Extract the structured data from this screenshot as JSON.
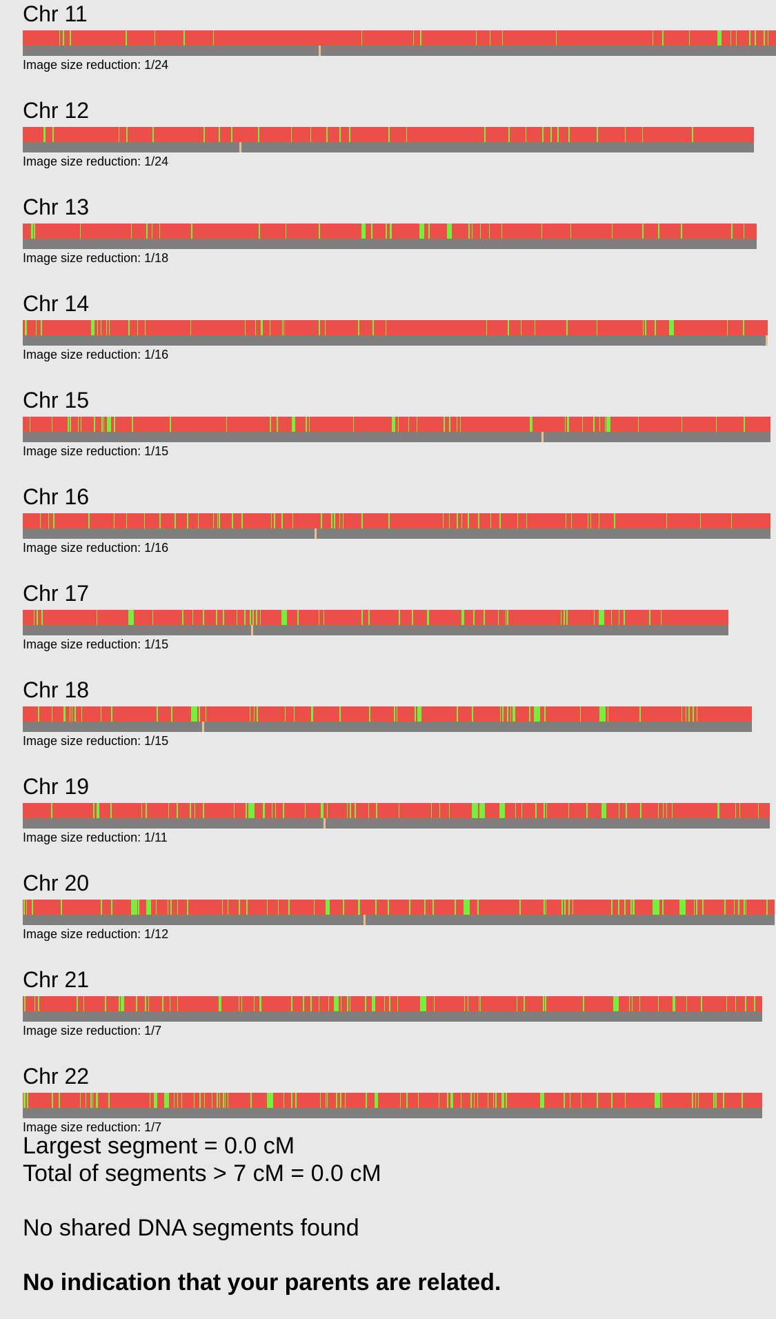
{
  "colors": {
    "background": "#e8e8e8",
    "mismatch_red": "#ea5049",
    "match_green": "#7aee3c",
    "track_gray": "#7f7f7f",
    "marker_tan": "#e8c28c"
  },
  "chromosomes": [
    {
      "label": "Chr 11",
      "caption": "Image size reduction: 1/24",
      "length_fraction": 1.0,
      "marker_fraction": 0.393,
      "green_seed": 11
    },
    {
      "label": "Chr 12",
      "caption": "Image size reduction: 1/24",
      "length_fraction": 0.971,
      "marker_fraction": 0.296,
      "green_seed": 12
    },
    {
      "label": "Chr 13",
      "caption": "Image size reduction: 1/18",
      "length_fraction": 0.974,
      "marker_fraction": null,
      "green_seed": 13
    },
    {
      "label": "Chr 14",
      "caption": "Image size reduction: 1/16",
      "length_fraction": 0.989,
      "marker_fraction": 0.998,
      "green_seed": 14
    },
    {
      "label": "Chr 15",
      "caption": "Image size reduction: 1/15",
      "length_fraction": 0.993,
      "marker_fraction": 0.694,
      "green_seed": 15
    },
    {
      "label": "Chr 16",
      "caption": "Image size reduction: 1/16",
      "length_fraction": 0.993,
      "marker_fraction": 0.39,
      "green_seed": 16
    },
    {
      "label": "Chr 17",
      "caption": "Image size reduction: 1/15",
      "length_fraction": 0.937,
      "marker_fraction": 0.324,
      "green_seed": 17
    },
    {
      "label": "Chr 18",
      "caption": "Image size reduction: 1/15",
      "length_fraction": 0.968,
      "marker_fraction": 0.246,
      "green_seed": 18
    },
    {
      "label": "Chr 19",
      "caption": "Image size reduction: 1/11",
      "length_fraction": 0.992,
      "marker_fraction": 0.403,
      "green_seed": 19
    },
    {
      "label": "Chr 20",
      "caption": "Image size reduction: 1/12",
      "length_fraction": 0.998,
      "marker_fraction": 0.453,
      "green_seed": 20
    },
    {
      "label": "Chr 21",
      "caption": "Image size reduction: 1/7",
      "length_fraction": 0.982,
      "marker_fraction": null,
      "green_seed": 21
    },
    {
      "label": "Chr 22",
      "caption": "Image size reduction: 1/7",
      "length_fraction": 0.982,
      "marker_fraction": null,
      "green_seed": 22
    }
  ],
  "summary": {
    "largest_segment": "Largest segment = 0.0 cM",
    "total_segments": "Total of segments > 7 cM = 0.0 cM",
    "no_shared": "No shared DNA segments found",
    "conclusion": "No indication that your parents are related."
  }
}
